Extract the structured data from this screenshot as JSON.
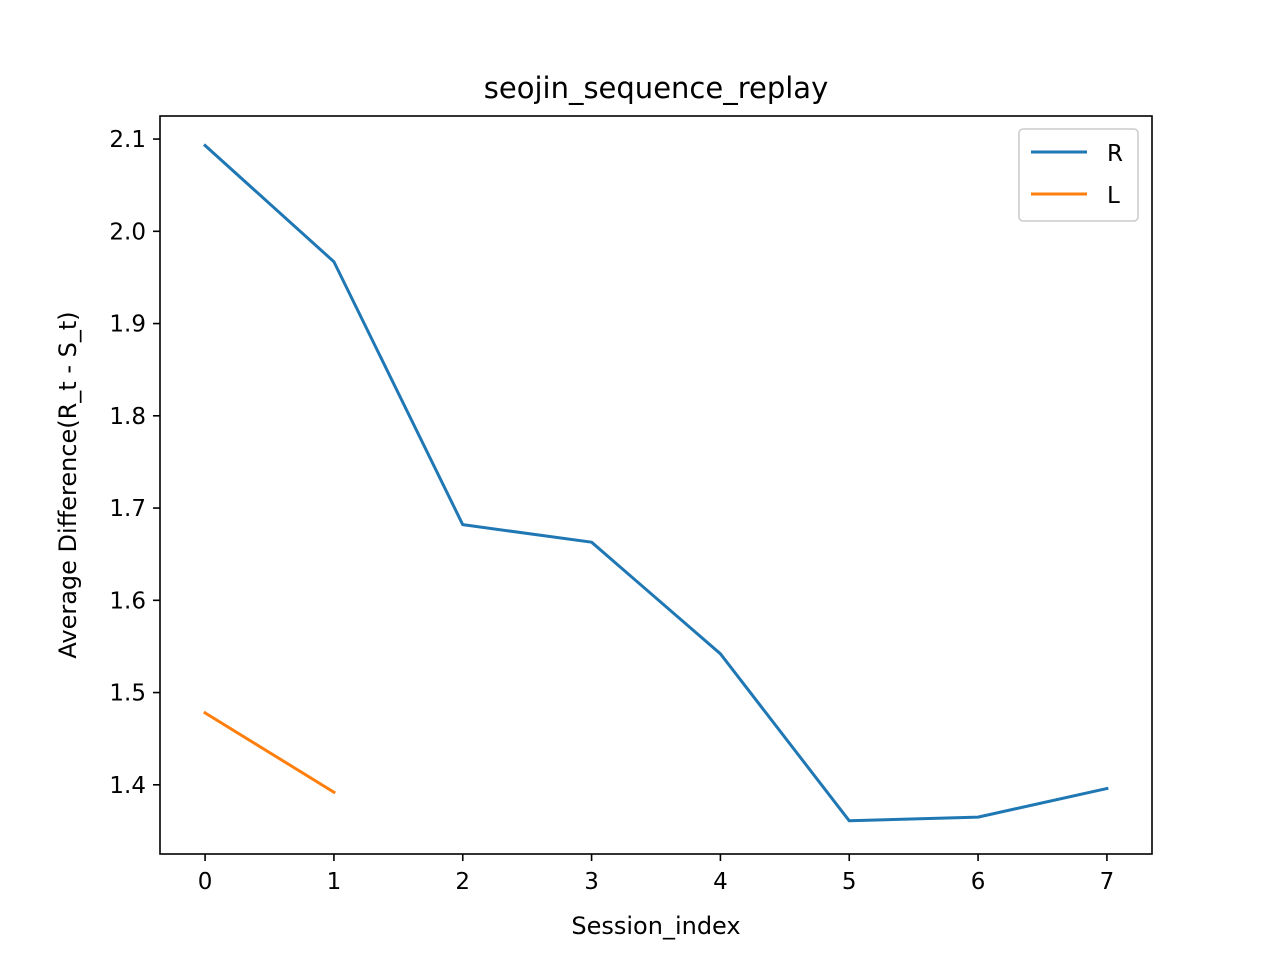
{
  "chart_data": {
    "type": "line",
    "title": "seojin_sequence_replay",
    "xlabel": "Session_index",
    "ylabel": "Average Difference(R_t - S_t)",
    "xlim": [
      -0.35,
      7.35
    ],
    "ylim": [
      1.325,
      2.125
    ],
    "xticks": [
      0,
      1,
      2,
      3,
      4,
      5,
      6,
      7
    ],
    "yticks": [
      1.4,
      1.5,
      1.6,
      1.7,
      1.8,
      1.9,
      2.0,
      2.1
    ],
    "xtick_labels": [
      "0",
      "1",
      "2",
      "3",
      "4",
      "5",
      "6",
      "7"
    ],
    "ytick_labels": [
      "1.4",
      "1.5",
      "1.6",
      "1.7",
      "1.8",
      "1.9",
      "2.0",
      "2.1"
    ],
    "grid": false,
    "legend_position": "top-right",
    "series": [
      {
        "name": "R",
        "color": "#1f77b4",
        "x": [
          0,
          1,
          2,
          3,
          4,
          5,
          6,
          7
        ],
        "y": [
          2.093,
          1.967,
          1.682,
          1.663,
          1.542,
          1.361,
          1.365,
          1.396
        ]
      },
      {
        "name": "L",
        "color": "#ff7f0e",
        "x": [
          0,
          1
        ],
        "y": [
          1.478,
          1.392
        ]
      }
    ]
  }
}
